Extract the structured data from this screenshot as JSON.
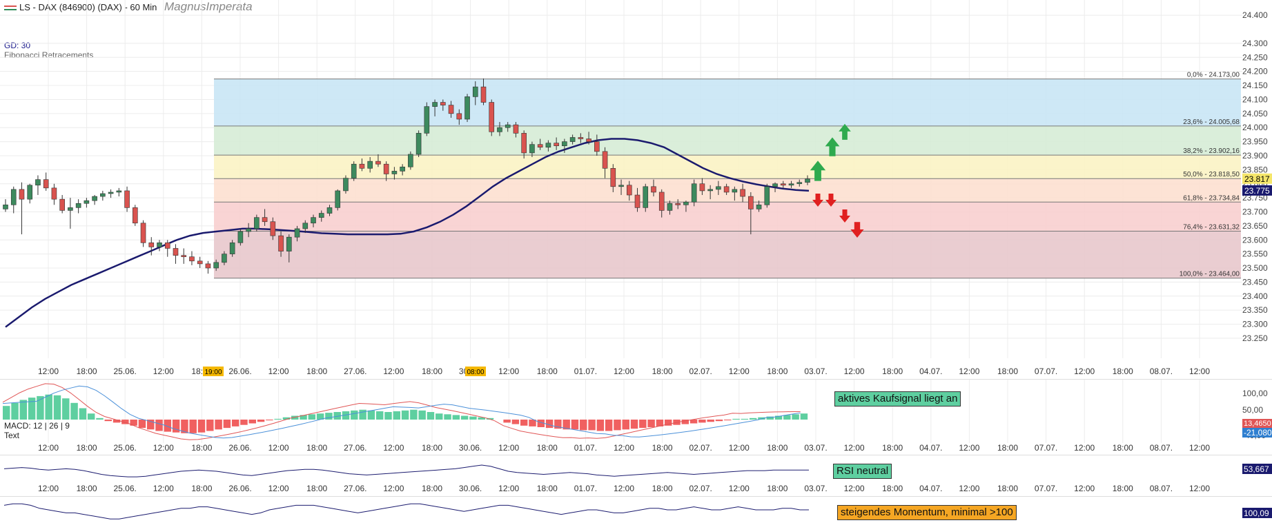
{
  "header": {
    "title": "LS - DAX (846900) (DAX) - 60 Min",
    "author": "MagnusImperata",
    "gd_label": "GD: 30",
    "fib_label": "Fibonacci Retracements"
  },
  "price_axis": {
    "ticks": [
      "24.400",
      "24.300",
      "24.250",
      "24.200",
      "24.150",
      "24.100",
      "24.050",
      "24.000",
      "23.950",
      "23.900",
      "23.850",
      "23.800",
      "23.750",
      "23.700",
      "23.650",
      "23.600",
      "23.550",
      "23.500",
      "23.450",
      "23.400",
      "23.350",
      "23.300",
      "23.250"
    ],
    "current_price_tag": "23.817",
    "gd_value_tag": "23.775"
  },
  "fibonacci": {
    "levels": [
      {
        "label": "0,0% - 24.173,00",
        "price": 24173.0
      },
      {
        "label": "23,6% - 24.005,68",
        "price": 24005.68
      },
      {
        "label": "38,2% - 23.902,16",
        "price": 23902.16
      },
      {
        "label": "50,0% - 23.818,50",
        "price": 23818.5
      },
      {
        "label": "61,8% - 23.734,84",
        "price": 23734.84
      },
      {
        "label": "76,4% - 23.631,32",
        "price": 23631.32
      },
      {
        "label": "100,0% - 23.464,00",
        "price": 23464.0
      }
    ],
    "zone_colors": [
      "#c9e6f5",
      "#d6ecd6",
      "#fbf3c4",
      "#fde0d0",
      "#f8cfcf",
      "#e8c8cc"
    ]
  },
  "time_axis": {
    "labels": [
      "12:00",
      "18:00",
      "25.06.",
      "12:00",
      "18:00",
      "26.06.",
      "12:00",
      "18:00",
      "27.06.",
      "12:00",
      "18:00",
      "30.06.",
      "12:00",
      "18:00",
      "01.07.",
      "12:00",
      "18:00",
      "02.07.",
      "12:00",
      "18:00",
      "03.07.",
      "12:00",
      "18:00",
      "04.07.",
      "12:00",
      "18:00",
      "07.07.",
      "12:00",
      "18:00",
      "08.07.",
      "12:00"
    ],
    "highlight_start": "19:00",
    "highlight_peak": "08:00"
  },
  "macd": {
    "label": "MACD: 12 | 26 | 9",
    "text_label": "Text",
    "signal_text": "aktives Kaufsignal liegt an",
    "ticks": [
      "100,00",
      "50,00",
      "-40,00"
    ],
    "value_tag_1": "13,4650",
    "value_tag_2": "-21,080"
  },
  "rsi": {
    "signal_text": "RSI neutral",
    "value_tag": "53,667"
  },
  "momentum": {
    "signal_text": "steigendes Momentum, minimal >100",
    "value_tag": "100,09"
  },
  "colors": {
    "bull": "#3d8a5e",
    "bear": "#d9534f",
    "ma_line": "#1a1a6e",
    "macd_pos": "#5ecfa0",
    "macd_neg": "#f06060",
    "up_arrow": "#2eaa4e",
    "down_arrow": "#e02020",
    "tag_price": "#f5e66a",
    "tag_dark": "#1a1a6e"
  },
  "chart_data": {
    "type": "candlestick",
    "title": "LS - DAX (846900) (DAX) - 60 Min",
    "ylim": [
      23240,
      24420
    ],
    "candles": [
      [
        23710,
        23745,
        23700,
        23725
      ],
      [
        23725,
        23790,
        23695,
        23780
      ],
      [
        23780,
        23805,
        23620,
        23745
      ],
      [
        23745,
        23800,
        23730,
        23795
      ],
      [
        23795,
        23830,
        23760,
        23815
      ],
      [
        23815,
        23840,
        23775,
        23785
      ],
      [
        23785,
        23800,
        23725,
        23745
      ],
      [
        23745,
        23760,
        23695,
        23705
      ],
      [
        23705,
        23750,
        23640,
        23715
      ],
      [
        23715,
        23745,
        23695,
        23730
      ],
      [
        23730,
        23750,
        23715,
        23740
      ],
      [
        23740,
        23760,
        23725,
        23755
      ],
      [
        23755,
        23775,
        23740,
        23765
      ],
      [
        23765,
        23780,
        23750,
        23770
      ],
      [
        23770,
        23785,
        23755,
        23775
      ],
      [
        23775,
        23790,
        23700,
        23715
      ],
      [
        23715,
        23725,
        23650,
        23660
      ],
      [
        23660,
        23670,
        23575,
        23590
      ],
      [
        23590,
        23610,
        23545,
        23575
      ],
      [
        23575,
        23600,
        23560,
        23590
      ],
      [
        23590,
        23600,
        23540,
        23570
      ],
      [
        23570,
        23585,
        23515,
        23545
      ],
      [
        23545,
        23570,
        23515,
        23540
      ],
      [
        23540,
        23560,
        23510,
        23525
      ],
      [
        23525,
        23540,
        23500,
        23515
      ],
      [
        23515,
        23525,
        23480,
        23500
      ],
      [
        23500,
        23530,
        23490,
        23520
      ],
      [
        23520,
        23560,
        23510,
        23550
      ],
      [
        23550,
        23600,
        23540,
        23590
      ],
      [
        23590,
        23640,
        23580,
        23630
      ],
      [
        23630,
        23660,
        23610,
        23640
      ],
      [
        23640,
        23690,
        23630,
        23680
      ],
      [
        23680,
        23710,
        23650,
        23665
      ],
      [
        23665,
        23680,
        23600,
        23615
      ],
      [
        23615,
        23630,
        23540,
        23560
      ],
      [
        23560,
        23620,
        23520,
        23610
      ],
      [
        23610,
        23650,
        23595,
        23640
      ],
      [
        23640,
        23670,
        23625,
        23660
      ],
      [
        23660,
        23690,
        23645,
        23680
      ],
      [
        23680,
        23705,
        23665,
        23695
      ],
      [
        23695,
        23725,
        23685,
        23715
      ],
      [
        23715,
        23780,
        23705,
        23775
      ],
      [
        23775,
        23830,
        23765,
        23820
      ],
      [
        23820,
        23880,
        23810,
        23870
      ],
      [
        23870,
        23890,
        23845,
        23855
      ],
      [
        23855,
        23895,
        23840,
        23880
      ],
      [
        23880,
        23905,
        23860,
        23870
      ],
      [
        23870,
        23880,
        23810,
        23835
      ],
      [
        23835,
        23860,
        23815,
        23845
      ],
      [
        23845,
        23870,
        23830,
        23860
      ],
      [
        23860,
        23915,
        23850,
        23905
      ],
      [
        23905,
        23990,
        23895,
        23980
      ],
      [
        23980,
        24090,
        23970,
        24075
      ],
      [
        24075,
        24100,
        24040,
        24090
      ],
      [
        24090,
        24100,
        24060,
        24080
      ],
      [
        24080,
        24095,
        24035,
        24050
      ],
      [
        24050,
        24065,
        24010,
        24030
      ],
      [
        24030,
        24120,
        24020,
        24110
      ],
      [
        24110,
        24165,
        24080,
        24145
      ],
      [
        24145,
        24175,
        24080,
        24090
      ],
      [
        24090,
        24100,
        23970,
        23985
      ],
      [
        23985,
        24020,
        23970,
        24000
      ],
      [
        24000,
        24020,
        23985,
        24010
      ],
      [
        24010,
        24020,
        23965,
        23980
      ],
      [
        23980,
        23990,
        23890,
        23910
      ],
      [
        23910,
        23950,
        23895,
        23940
      ],
      [
        23940,
        23960,
        23920,
        23930
      ],
      [
        23930,
        23955,
        23915,
        23945
      ],
      [
        23945,
        23965,
        23920,
        23935
      ],
      [
        23935,
        23960,
        23910,
        23950
      ],
      [
        23950,
        23975,
        23940,
        23965
      ],
      [
        23965,
        23980,
        23945,
        23960
      ],
      [
        23960,
        23985,
        23940,
        23950
      ],
      [
        23950,
        23975,
        23900,
        23915
      ],
      [
        23915,
        23930,
        23820,
        23855
      ],
      [
        23855,
        23870,
        23770,
        23790
      ],
      [
        23790,
        23815,
        23760,
        23795
      ],
      [
        23795,
        23810,
        23740,
        23760
      ],
      [
        23760,
        23785,
        23700,
        23715
      ],
      [
        23715,
        23800,
        23700,
        23790
      ],
      [
        23790,
        23815,
        23755,
        23770
      ],
      [
        23770,
        23780,
        23680,
        23705
      ],
      [
        23705,
        23740,
        23690,
        23730
      ],
      [
        23730,
        23745,
        23710,
        23725
      ],
      [
        23725,
        23740,
        23700,
        23735
      ],
      [
        23735,
        23815,
        23720,
        23800
      ],
      [
        23800,
        23820,
        23760,
        23775
      ],
      [
        23775,
        23795,
        23745,
        23780
      ],
      [
        23780,
        23810,
        23760,
        23790
      ],
      [
        23790,
        23800,
        23760,
        23770
      ],
      [
        23770,
        23790,
        23740,
        23780
      ],
      [
        23780,
        23800,
        23735,
        23755
      ],
      [
        23755,
        23770,
        23620,
        23710
      ],
      [
        23710,
        23740,
        23700,
        23725
      ],
      [
        23725,
        23800,
        23715,
        23790
      ],
      [
        23790,
        23805,
        23770,
        23800
      ],
      [
        23800,
        23810,
        23785,
        23795
      ],
      [
        23795,
        23810,
        23785,
        23800
      ],
      [
        23800,
        23815,
        23790,
        23805
      ],
      [
        23805,
        23830,
        23795,
        23817
      ]
    ],
    "moving_average": {
      "name": "GD: 30",
      "values": [
        23290,
        23325,
        23360,
        23390,
        23415,
        23440,
        23460,
        23480,
        23500,
        23520,
        23540,
        23560,
        23580,
        23600,
        23615,
        23625,
        23630,
        23635,
        23640,
        23640,
        23638,
        23635,
        23632,
        23628,
        23624,
        23622,
        23620,
        23620,
        23620,
        23620,
        23622,
        23630,
        23645,
        23665,
        23690,
        23720,
        23755,
        23790,
        23820,
        23845,
        23870,
        23895,
        23915,
        23930,
        23945,
        23955,
        23960,
        23960,
        23955,
        23945,
        23930,
        23905,
        23880,
        23855,
        23835,
        23820,
        23808,
        23798,
        23790,
        23783,
        23778,
        23775
      ]
    },
    "x_tick_labels": [
      "12:00",
      "18:00",
      "25.06.",
      "12:00",
      "18:00",
      "26.06.",
      "12:00",
      "18:00",
      "27.06.",
      "12:00",
      "18:00",
      "30.06.",
      "12:00",
      "18:00",
      "01.07.",
      "12:00",
      "18:00",
      "02.07.",
      "12:00",
      "18:00",
      "03.07.",
      "12:00",
      "18:00",
      "04.07.",
      "12:00",
      "18:00",
      "07.07.",
      "12:00",
      "18:00",
      "08.07.",
      "12:00"
    ],
    "macd_histogram": [
      18,
      22,
      26,
      29,
      31,
      33,
      32,
      28,
      22,
      15,
      8,
      2,
      -2,
      -4,
      -6,
      -8,
      -11,
      -13,
      -15,
      -16,
      -17,
      -18,
      -18,
      -17,
      -15,
      -13,
      -11,
      -9,
      -7,
      -5,
      -3,
      -1,
      1,
      3,
      5,
      6,
      7,
      8,
      9,
      10,
      11,
      12,
      13,
      12,
      11,
      10,
      11,
      12,
      13,
      12,
      10,
      8,
      7,
      6,
      5,
      4,
      3,
      2,
      0,
      -4,
      -6,
      -8,
      -9,
      -10,
      -11,
      -12,
      -13,
      -13,
      -14,
      -14,
      -15,
      -15,
      -14,
      -13,
      -12,
      -11,
      -10,
      -9,
      -8,
      -7,
      -6,
      -5,
      -4,
      -3,
      -2,
      -1,
      1,
      1,
      2,
      3,
      4,
      5,
      6,
      7,
      8
    ],
    "rsi": [
      56,
      57,
      58,
      57,
      55,
      54,
      55,
      56,
      55,
      53,
      50,
      47,
      45,
      44,
      43,
      43,
      44,
      46,
      48,
      50,
      52,
      53,
      54,
      53,
      52,
      50,
      48,
      46,
      45,
      47,
      49,
      51,
      53,
      54,
      55,
      55,
      54,
      52,
      50,
      48,
      47,
      46,
      47,
      48,
      49,
      50,
      51,
      52,
      53,
      54,
      55,
      56,
      58,
      60,
      62,
      60,
      56,
      52,
      50,
      49,
      48,
      47,
      48,
      49,
      50,
      49,
      48,
      46,
      45,
      44,
      45,
      46,
      47,
      48,
      49,
      50,
      49,
      48,
      47,
      48,
      49,
      50,
      51,
      52,
      53,
      53,
      53,
      54,
      54,
      54,
      54,
      54
    ],
    "momentum": [
      103,
      104,
      104,
      103,
      101,
      100,
      99,
      98,
      98,
      97,
      96,
      95,
      94,
      94,
      95,
      96,
      97,
      98,
      99,
      100,
      101,
      101,
      102,
      102,
      101,
      100,
      99,
      98,
      97,
      98,
      100,
      101,
      102,
      103,
      103,
      103,
      102,
      101,
      100,
      99,
      98,
      99,
      100,
      101,
      102,
      103,
      104,
      104,
      103,
      102,
      101,
      100,
      99,
      100,
      101,
      102,
      103,
      103,
      102,
      101,
      100,
      99,
      98,
      97,
      98,
      99,
      100,
      100,
      99,
      98,
      98,
      99,
      100,
      101,
      101,
      100,
      100,
      101,
      102,
      101,
      100,
      100,
      101,
      102,
      101,
      100,
      100,
      100,
      101,
      101,
      100,
      100
    ]
  }
}
